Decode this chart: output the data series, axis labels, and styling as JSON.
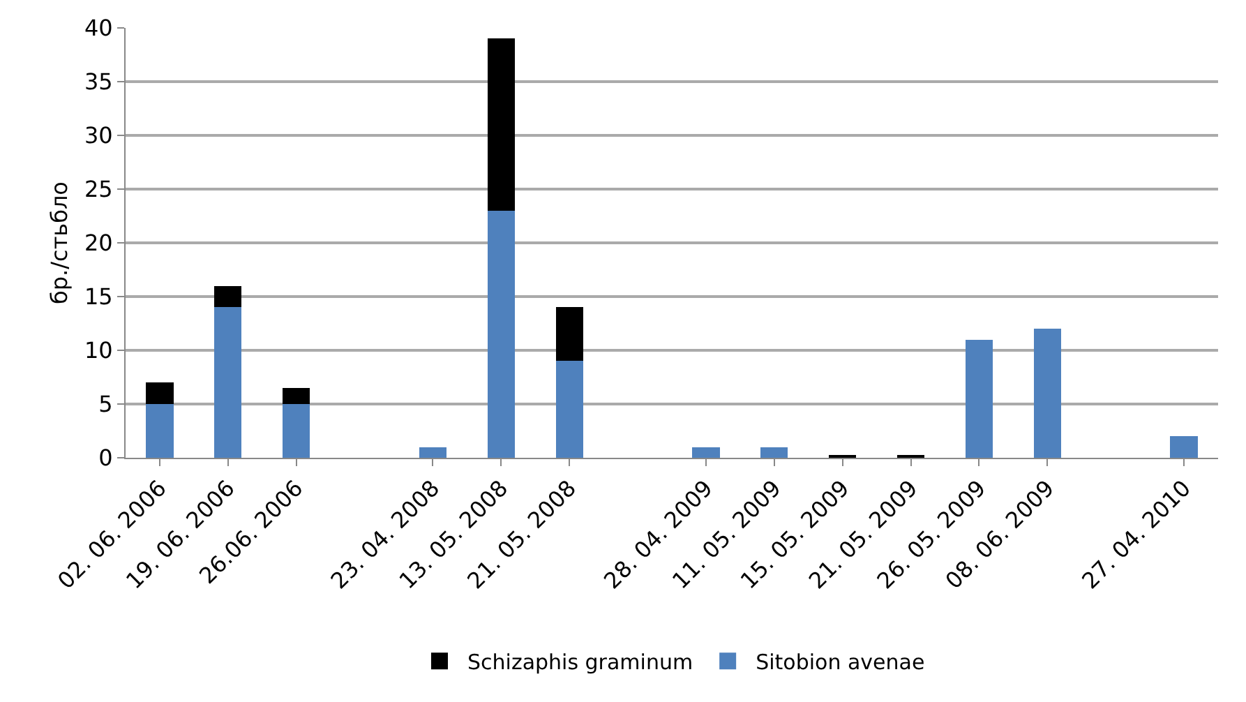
{
  "chart_data": {
    "type": "bar",
    "stacked": true,
    "ylabel": "бр./стьбло",
    "categories": [
      "02. 06. 2006",
      "19. 06. 2006",
      "26.06. 2006",
      null,
      "23. 04. 2008",
      "13. 05. 2008",
      "21. 05. 2008",
      null,
      "28. 04. 2009",
      "11. 05. 2009",
      "15. 05. 2009",
      "21. 05. 2009",
      "26. 05. 2009",
      "08. 06. 2009",
      null,
      "27. 04. 2010"
    ],
    "series": [
      {
        "name": "Sitobion avenae",
        "color": "#4f81bd",
        "values": [
          5,
          14,
          5,
          null,
          1,
          23,
          9,
          null,
          1,
          1,
          0,
          0,
          11,
          12,
          null,
          2
        ]
      },
      {
        "name": "Schizaphis graminum",
        "color": "#000000",
        "values": [
          2,
          2,
          1.5,
          null,
          0,
          16,
          5,
          null,
          0,
          0,
          0.2,
          0.2,
          0,
          0,
          null,
          0
        ]
      }
    ],
    "ylim": [
      0,
      40
    ],
    "yticks": [
      0,
      5,
      10,
      15,
      20,
      25,
      30,
      35,
      40
    ],
    "grid": "y",
    "legend": "bottom"
  }
}
